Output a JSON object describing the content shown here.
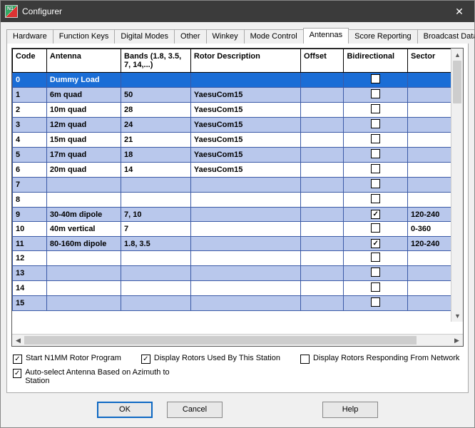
{
  "window": {
    "title": "Configurer"
  },
  "tabs": [
    {
      "label": "Hardware",
      "active": false
    },
    {
      "label": "Function Keys",
      "active": false
    },
    {
      "label": "Digital Modes",
      "active": false
    },
    {
      "label": "Other",
      "active": false
    },
    {
      "label": "Winkey",
      "active": false
    },
    {
      "label": "Mode Control",
      "active": false
    },
    {
      "label": "Antennas",
      "active": true
    },
    {
      "label": "Score Reporting",
      "active": false
    },
    {
      "label": "Broadcast Data",
      "active": false
    }
  ],
  "grid": {
    "columns": [
      {
        "key": "code",
        "label": "Code",
        "cls": "col-code"
      },
      {
        "key": "antenna",
        "label": "Antenna",
        "cls": "col-ant"
      },
      {
        "key": "bands",
        "label": "Bands (1.8, 3.5, 7, 14,...)",
        "cls": "col-bands"
      },
      {
        "key": "rotor",
        "label": "Rotor Description",
        "cls": "col-rotor"
      },
      {
        "key": "offset",
        "label": "Offset",
        "cls": "col-offset"
      },
      {
        "key": "bidir",
        "label": "Bidirectional",
        "cls": "col-bidir",
        "checkbox": true
      },
      {
        "key": "sector",
        "label": "Sector",
        "cls": "col-sector"
      }
    ],
    "rows": [
      {
        "code": "0",
        "antenna": "Dummy Load",
        "bands": "",
        "rotor": "",
        "offset": "",
        "bidir": false,
        "sector": "",
        "selected": true
      },
      {
        "code": "1",
        "antenna": "6m quad",
        "bands": "50",
        "rotor": "YaesuCom15",
        "offset": "",
        "bidir": false,
        "sector": ""
      },
      {
        "code": "2",
        "antenna": "10m quad",
        "bands": "28",
        "rotor": "YaesuCom15",
        "offset": "",
        "bidir": false,
        "sector": ""
      },
      {
        "code": "3",
        "antenna": "12m quad",
        "bands": "24",
        "rotor": "YaesuCom15",
        "offset": "",
        "bidir": false,
        "sector": ""
      },
      {
        "code": "4",
        "antenna": "15m quad",
        "bands": "21",
        "rotor": "YaesuCom15",
        "offset": "",
        "bidir": false,
        "sector": ""
      },
      {
        "code": "5",
        "antenna": "17m quad",
        "bands": "18",
        "rotor": "YaesuCom15",
        "offset": "",
        "bidir": false,
        "sector": ""
      },
      {
        "code": "6",
        "antenna": "20m quad",
        "bands": "14",
        "rotor": "YaesuCom15",
        "offset": "",
        "bidir": false,
        "sector": ""
      },
      {
        "code": "7",
        "antenna": "",
        "bands": "",
        "rotor": "",
        "offset": "",
        "bidir": false,
        "sector": ""
      },
      {
        "code": "8",
        "antenna": "",
        "bands": "",
        "rotor": "",
        "offset": "",
        "bidir": false,
        "sector": ""
      },
      {
        "code": "9",
        "antenna": "30-40m dipole",
        "bands": "7, 10",
        "rotor": "",
        "offset": "",
        "bidir": true,
        "sector": "120-240"
      },
      {
        "code": "10",
        "antenna": "40m vertical",
        "bands": "7",
        "rotor": "",
        "offset": "",
        "bidir": false,
        "sector": "0-360"
      },
      {
        "code": "11",
        "antenna": "80-160m dipole",
        "bands": "1.8, 3.5",
        "rotor": "",
        "offset": "",
        "bidir": true,
        "sector": "120-240"
      },
      {
        "code": "12",
        "antenna": "",
        "bands": "",
        "rotor": "",
        "offset": "",
        "bidir": false,
        "sector": ""
      },
      {
        "code": "13",
        "antenna": "",
        "bands": "",
        "rotor": "",
        "offset": "",
        "bidir": false,
        "sector": ""
      },
      {
        "code": "14",
        "antenna": "",
        "bands": "",
        "rotor": "",
        "offset": "",
        "bidir": false,
        "sector": ""
      },
      {
        "code": "15",
        "antenna": "",
        "bands": "",
        "rotor": "",
        "offset": "",
        "bidir": false,
        "sector": ""
      }
    ]
  },
  "options": [
    {
      "label": "Start N1MM Rotor Program",
      "checked": true
    },
    {
      "label": "Display Rotors Used By This Station",
      "checked": true
    },
    {
      "label": "Display Rotors Responding From Network",
      "checked": false
    },
    {
      "label": "Auto-select Antenna Based on Azimuth to Station",
      "checked": true
    }
  ],
  "buttons": {
    "ok": "OK",
    "cancel": "Cancel",
    "help": "Help"
  }
}
